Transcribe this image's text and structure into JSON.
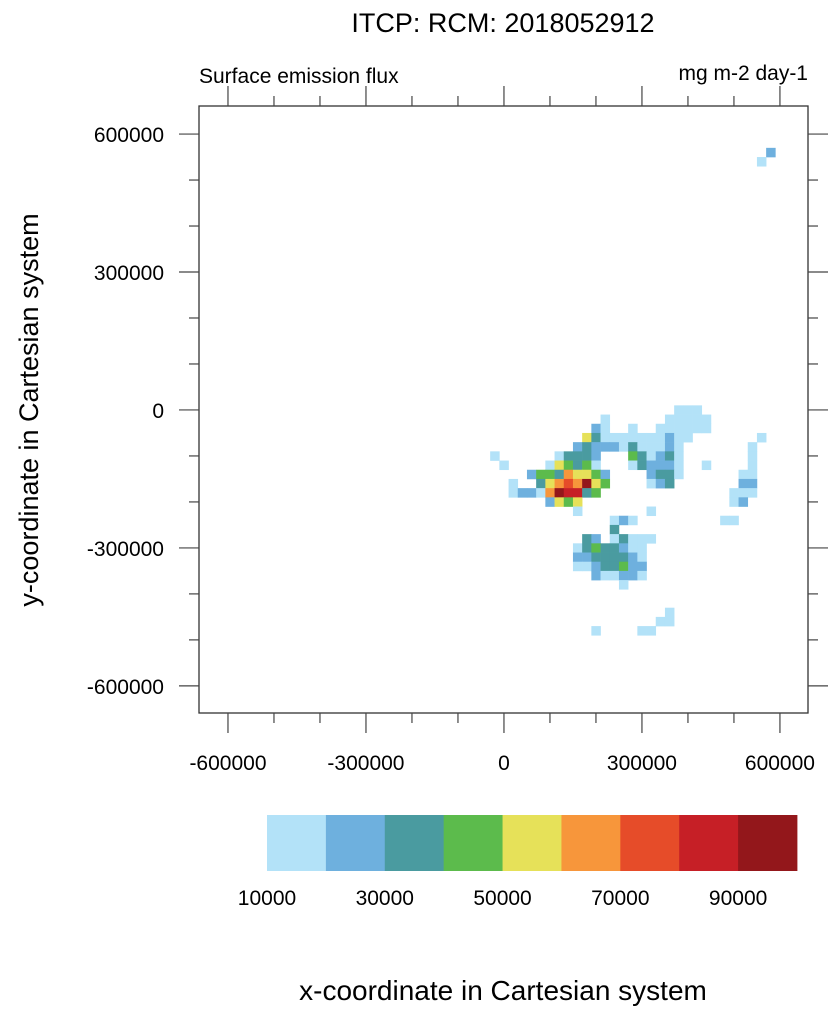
{
  "chart_data": {
    "type": "heatmap",
    "title": "ITCP: RCM: 2018052912",
    "left_string": "Surface emission flux",
    "right_string": "mg m-2 day-1",
    "xlabel": "x-coordinate in Cartesian system",
    "ylabel": "y-coordinate in Cartesian system",
    "xlim": [
      -663000,
      661000
    ],
    "ylim": [
      -659000,
      661000
    ],
    "xticks": [
      -600000,
      -300000,
      0,
      300000,
      600000
    ],
    "xtick_labels": [
      "-600000",
      "-300000",
      "0",
      "300000",
      "600000"
    ],
    "yticks": [
      600000,
      300000,
      0,
      -300000,
      -600000
    ],
    "ytick_labels": [
      "600000",
      "300000",
      "0",
      "-300000",
      "-600000"
    ],
    "minor_tick_step": 100000,
    "grid": false,
    "cell_size": 20000,
    "colorbar": {
      "placement": "bottom",
      "levels": [
        10000,
        20000,
        30000,
        40000,
        50000,
        60000,
        70000,
        80000,
        90000,
        100000
      ],
      "colors": [
        "#b3e2f8",
        "#6eb0de",
        "#4a9ba0",
        "#5cbb4c",
        "#e6e159",
        "#f7963b",
        "#e64c29",
        "#c61f26",
        "#93171b"
      ],
      "labels": [
        "10000",
        "30000",
        "50000",
        "70000",
        "90000"
      ],
      "label_values": [
        10000,
        30000,
        50000,
        70000,
        90000
      ]
    },
    "cells": [
      [
        580000,
        560000,
        25000
      ],
      [
        560000,
        540000,
        15000
      ],
      [
        380000,
        0,
        15000
      ],
      [
        400000,
        0,
        15000
      ],
      [
        420000,
        0,
        15000
      ],
      [
        220000,
        -20000,
        15000
      ],
      [
        360000,
        -20000,
        15000
      ],
      [
        380000,
        -20000,
        15000
      ],
      [
        400000,
        -20000,
        15000
      ],
      [
        420000,
        -20000,
        15000
      ],
      [
        440000,
        -20000,
        15000
      ],
      [
        200000,
        -40000,
        25000
      ],
      [
        220000,
        -40000,
        15000
      ],
      [
        280000,
        -40000,
        15000
      ],
      [
        340000,
        -40000,
        15000
      ],
      [
        360000,
        -40000,
        15000
      ],
      [
        380000,
        -40000,
        15000
      ],
      [
        400000,
        -40000,
        15000
      ],
      [
        420000,
        -40000,
        15000
      ],
      [
        440000,
        -40000,
        15000
      ],
      [
        180000,
        -60000,
        55000
      ],
      [
        200000,
        -60000,
        35000
      ],
      [
        220000,
        -60000,
        15000
      ],
      [
        240000,
        -60000,
        15000
      ],
      [
        260000,
        -60000,
        15000
      ],
      [
        280000,
        -60000,
        15000
      ],
      [
        300000,
        -60000,
        15000
      ],
      [
        320000,
        -60000,
        15000
      ],
      [
        340000,
        -60000,
        15000
      ],
      [
        360000,
        -60000,
        25000
      ],
      [
        380000,
        -60000,
        15000
      ],
      [
        400000,
        -60000,
        15000
      ],
      [
        560000,
        -60000,
        15000
      ],
      [
        160000,
        -80000,
        25000
      ],
      [
        180000,
        -80000,
        35000
      ],
      [
        200000,
        -80000,
        25000
      ],
      [
        220000,
        -80000,
        25000
      ],
      [
        240000,
        -80000,
        25000
      ],
      [
        260000,
        -80000,
        15000
      ],
      [
        280000,
        -80000,
        35000
      ],
      [
        300000,
        -80000,
        15000
      ],
      [
        320000,
        -80000,
        15000
      ],
      [
        340000,
        -80000,
        15000
      ],
      [
        360000,
        -80000,
        25000
      ],
      [
        380000,
        -80000,
        15000
      ],
      [
        540000,
        -80000,
        15000
      ],
      [
        -20000,
        -100000,
        15000
      ],
      [
        120000,
        -100000,
        15000
      ],
      [
        140000,
        -100000,
        35000
      ],
      [
        160000,
        -100000,
        35000
      ],
      [
        180000,
        -100000,
        35000
      ],
      [
        200000,
        -100000,
        25000
      ],
      [
        280000,
        -100000,
        45000
      ],
      [
        300000,
        -100000,
        35000
      ],
      [
        320000,
        -100000,
        15000
      ],
      [
        340000,
        -100000,
        25000
      ],
      [
        360000,
        -100000,
        35000
      ],
      [
        380000,
        -100000,
        15000
      ],
      [
        540000,
        -100000,
        15000
      ],
      [
        0,
        -120000,
        15000
      ],
      [
        100000,
        -120000,
        15000
      ],
      [
        120000,
        -120000,
        55000
      ],
      [
        140000,
        -120000,
        45000
      ],
      [
        160000,
        -120000,
        35000
      ],
      [
        180000,
        -120000,
        45000
      ],
      [
        200000,
        -120000,
        15000
      ],
      [
        280000,
        -120000,
        15000
      ],
      [
        300000,
        -120000,
        35000
      ],
      [
        320000,
        -120000,
        25000
      ],
      [
        340000,
        -120000,
        25000
      ],
      [
        360000,
        -120000,
        25000
      ],
      [
        380000,
        -120000,
        15000
      ],
      [
        440000,
        -120000,
        15000
      ],
      [
        540000,
        -120000,
        15000
      ],
      [
        60000,
        -140000,
        25000
      ],
      [
        80000,
        -140000,
        45000
      ],
      [
        100000,
        -140000,
        45000
      ],
      [
        120000,
        -140000,
        35000
      ],
      [
        140000,
        -140000,
        65000
      ],
      [
        160000,
        -140000,
        55000
      ],
      [
        180000,
        -140000,
        55000
      ],
      [
        200000,
        -140000,
        45000
      ],
      [
        220000,
        -140000,
        25000
      ],
      [
        320000,
        -140000,
        25000
      ],
      [
        340000,
        -140000,
        35000
      ],
      [
        360000,
        -140000,
        35000
      ],
      [
        380000,
        -140000,
        15000
      ],
      [
        520000,
        -140000,
        15000
      ],
      [
        540000,
        -140000,
        15000
      ],
      [
        20000,
        -160000,
        15000
      ],
      [
        80000,
        -160000,
        35000
      ],
      [
        100000,
        -160000,
        55000
      ],
      [
        120000,
        -160000,
        65000
      ],
      [
        140000,
        -160000,
        75000
      ],
      [
        160000,
        -160000,
        65000
      ],
      [
        180000,
        -160000,
        95000
      ],
      [
        200000,
        -160000,
        55000
      ],
      [
        220000,
        -160000,
        45000
      ],
      [
        320000,
        -160000,
        15000
      ],
      [
        340000,
        -160000,
        25000
      ],
      [
        360000,
        -160000,
        35000
      ],
      [
        520000,
        -160000,
        25000
      ],
      [
        540000,
        -160000,
        25000
      ],
      [
        20000,
        -180000,
        15000
      ],
      [
        40000,
        -180000,
        25000
      ],
      [
        60000,
        -180000,
        25000
      ],
      [
        80000,
        -180000,
        15000
      ],
      [
        100000,
        -180000,
        65000
      ],
      [
        120000,
        -180000,
        95000
      ],
      [
        140000,
        -180000,
        85000
      ],
      [
        160000,
        -180000,
        85000
      ],
      [
        180000,
        -180000,
        35000
      ],
      [
        200000,
        -180000,
        45000
      ],
      [
        500000,
        -180000,
        15000
      ],
      [
        520000,
        -180000,
        15000
      ],
      [
        540000,
        -180000,
        15000
      ],
      [
        100000,
        -200000,
        25000
      ],
      [
        120000,
        -200000,
        55000
      ],
      [
        140000,
        -200000,
        45000
      ],
      [
        160000,
        -200000,
        55000
      ],
      [
        500000,
        -200000,
        15000
      ],
      [
        520000,
        -200000,
        25000
      ],
      [
        160000,
        -220000,
        15000
      ],
      [
        320000,
        -220000,
        15000
      ],
      [
        240000,
        -240000,
        15000
      ],
      [
        260000,
        -240000,
        25000
      ],
      [
        280000,
        -240000,
        15000
      ],
      [
        480000,
        -240000,
        15000
      ],
      [
        500000,
        -240000,
        15000
      ],
      [
        240000,
        -260000,
        35000
      ],
      [
        180000,
        -280000,
        35000
      ],
      [
        200000,
        -280000,
        25000
      ],
      [
        240000,
        -280000,
        15000
      ],
      [
        260000,
        -280000,
        35000
      ],
      [
        280000,
        -280000,
        15000
      ],
      [
        300000,
        -280000,
        15000
      ],
      [
        320000,
        -280000,
        15000
      ],
      [
        160000,
        -300000,
        15000
      ],
      [
        180000,
        -300000,
        35000
      ],
      [
        200000,
        -300000,
        45000
      ],
      [
        220000,
        -300000,
        35000
      ],
      [
        240000,
        -300000,
        35000
      ],
      [
        260000,
        -300000,
        25000
      ],
      [
        280000,
        -300000,
        15000
      ],
      [
        300000,
        -300000,
        15000
      ],
      [
        160000,
        -320000,
        25000
      ],
      [
        180000,
        -320000,
        25000
      ],
      [
        200000,
        -320000,
        35000
      ],
      [
        220000,
        -320000,
        35000
      ],
      [
        240000,
        -320000,
        35000
      ],
      [
        260000,
        -320000,
        35000
      ],
      [
        280000,
        -320000,
        25000
      ],
      [
        300000,
        -320000,
        15000
      ],
      [
        160000,
        -340000,
        15000
      ],
      [
        180000,
        -340000,
        15000
      ],
      [
        200000,
        -340000,
        25000
      ],
      [
        220000,
        -340000,
        35000
      ],
      [
        240000,
        -340000,
        35000
      ],
      [
        260000,
        -340000,
        45000
      ],
      [
        280000,
        -340000,
        25000
      ],
      [
        300000,
        -340000,
        25000
      ],
      [
        200000,
        -360000,
        25000
      ],
      [
        220000,
        -360000,
        15000
      ],
      [
        240000,
        -360000,
        15000
      ],
      [
        260000,
        -360000,
        25000
      ],
      [
        280000,
        -360000,
        25000
      ],
      [
        300000,
        -360000,
        15000
      ],
      [
        260000,
        -380000,
        15000
      ],
      [
        360000,
        -440000,
        15000
      ],
      [
        340000,
        -460000,
        15000
      ],
      [
        360000,
        -460000,
        15000
      ],
      [
        200000,
        -480000,
        15000
      ],
      [
        300000,
        -480000,
        15000
      ],
      [
        320000,
        -480000,
        15000
      ]
    ]
  }
}
